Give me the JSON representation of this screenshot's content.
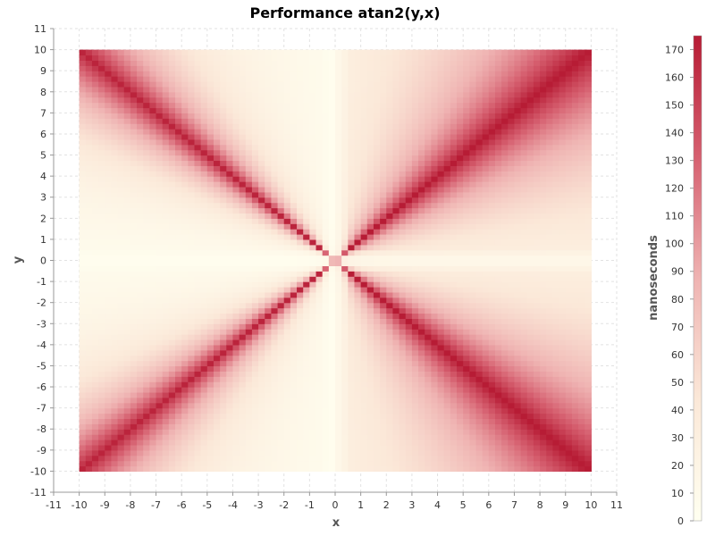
{
  "chart_data": {
    "type": "heatmap",
    "title": "Performance atan2(y,x)",
    "xlabel": "x",
    "ylabel": "y",
    "colorbar_label": "nanoseconds",
    "xlim": [
      -11,
      11
    ],
    "ylim": [
      -11,
      11
    ],
    "data_extent": {
      "x": [
        -10,
        10
      ],
      "y": [
        -10,
        10
      ]
    },
    "x_ticks": [
      "-11",
      "-10",
      "-9",
      "-8",
      "-7",
      "-6",
      "-5",
      "-4",
      "-3",
      "-2",
      "-1",
      "0",
      "1",
      "2",
      "3",
      "4",
      "5",
      "6",
      "7",
      "8",
      "9",
      "10",
      "11"
    ],
    "y_ticks": [
      "-11",
      "-10",
      "-9",
      "-8",
      "-7",
      "-6",
      "-5",
      "-4",
      "-3",
      "-2",
      "-1",
      "0",
      "1",
      "2",
      "3",
      "4",
      "5",
      "6",
      "7",
      "8",
      "9",
      "10",
      "11"
    ],
    "colorbar_ticks": [
      "0",
      "10",
      "20",
      "30",
      "40",
      "50",
      "60",
      "70",
      "80",
      "90",
      "100",
      "110",
      "120",
      "130",
      "140",
      "150",
      "160",
      "170"
    ],
    "colorbar_range": [
      0,
      175
    ],
    "grid": true,
    "colors": {
      "low": "#fffff0",
      "high": "#b71c35"
    },
    "value_model": "cost in ns is highest (about 170) along the diagonals |y| = |x| and falls to near 0 along the axes x = 0 and y = 0; the band near |y| = |x| is wider and stronger for x > 0"
  }
}
